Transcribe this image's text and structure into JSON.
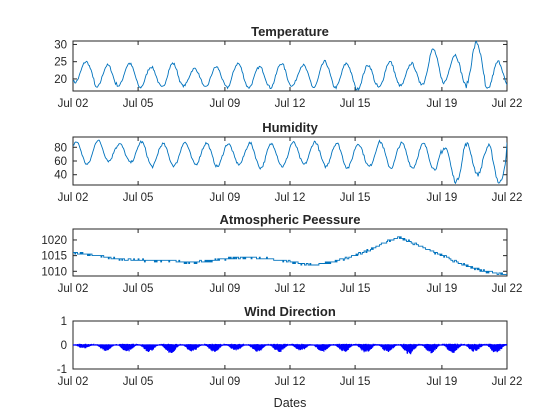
{
  "chart_data": [
    {
      "type": "line",
      "title": "Temperature",
      "xlabel": "",
      "ylabel": "",
      "x_range": [
        "Jul 02",
        "Jul 22"
      ],
      "xticks": [
        "Jul 02",
        "Jul 05",
        "Jul 09",
        "Jul 12",
        "Jul 15",
        "Jul 19",
        "Jul 22"
      ],
      "ylim": [
        16.5,
        31
      ],
      "yticks": [
        20,
        25,
        30
      ],
      "color": "#0072bd",
      "series": [
        {
          "x": [
            "Jul 02",
            "Jul 03",
            "Jul 04",
            "Jul 05",
            "Jul 06",
            "Jul 07",
            "Jul 08",
            "Jul 09",
            "Jul 10",
            "Jul 11",
            "Jul 12",
            "Jul 13",
            "Jul 14",
            "Jul 15",
            "Jul 16",
            "Jul 17",
            "Jul 18",
            "Jul 19",
            "Jul 20",
            "Jul 21",
            "Jul 22"
          ],
          "daily_min": [
            19,
            17.5,
            18,
            17.5,
            17.5,
            18,
            17.5,
            17.5,
            17.5,
            17.5,
            18,
            17.5,
            17.5,
            17,
            17.5,
            18,
            18.5,
            19,
            18,
            17,
            17.5
          ],
          "daily_max": [
            25,
            24,
            24.5,
            23.5,
            24.5,
            23,
            23.5,
            24.5,
            23.5,
            24.5,
            24,
            25,
            24.5,
            24,
            25,
            24.5,
            28.5,
            27,
            30.5,
            25,
            23
          ]
        }
      ]
    },
    {
      "type": "line",
      "title": "Humidity",
      "xlabel": "",
      "ylabel": "",
      "x_range": [
        "Jul 02",
        "Jul 22"
      ],
      "xticks": [
        "Jul 02",
        "Jul 05",
        "Jul 09",
        "Jul 12",
        "Jul 15",
        "Jul 19",
        "Jul 22"
      ],
      "ylim": [
        25,
        95
      ],
      "yticks": [
        40,
        60,
        80
      ],
      "color": "#0072bd",
      "series": [
        {
          "x": [
            "Jul 02",
            "Jul 03",
            "Jul 04",
            "Jul 05",
            "Jul 06",
            "Jul 07",
            "Jul 08",
            "Jul 09",
            "Jul 10",
            "Jul 11",
            "Jul 12",
            "Jul 13",
            "Jul 14",
            "Jul 15",
            "Jul 16",
            "Jul 17",
            "Jul 18",
            "Jul 19",
            "Jul 20",
            "Jul 21",
            "Jul 22"
          ],
          "daily_min": [
            55,
            60,
            58,
            52,
            53,
            55,
            52,
            55,
            50,
            52,
            55,
            52,
            50,
            52,
            50,
            50,
            48,
            30,
            40,
            28,
            50
          ],
          "daily_max": [
            88,
            90,
            85,
            88,
            85,
            87,
            86,
            85,
            86,
            85,
            87,
            88,
            86,
            85,
            88,
            86,
            85,
            80,
            85,
            82,
            95
          ]
        }
      ]
    },
    {
      "type": "line",
      "title": "Atmospheric Peessure",
      "xlabel": "",
      "ylabel": "",
      "x_range": [
        "Jul 02",
        "Jul 22"
      ],
      "xticks": [
        "Jul 02",
        "Jul 05",
        "Jul 09",
        "Jul 12",
        "Jul 15",
        "Jul 19",
        "Jul 22"
      ],
      "ylim": [
        1008.5,
        1023.5
      ],
      "yticks": [
        1010,
        1015,
        1020
      ],
      "color": "#0072bd",
      "series": [
        {
          "x": [
            "Jul 02",
            "Jul 03",
            "Jul 04",
            "Jul 05",
            "Jul 06",
            "Jul 07",
            "Jul 08",
            "Jul 09",
            "Jul 10",
            "Jul 11",
            "Jul 12",
            "Jul 13",
            "Jul 14",
            "Jul 15",
            "Jul 16",
            "Jul 17",
            "Jul 18",
            "Jul 19",
            "Jul 20",
            "Jul 21",
            "Jul 22"
          ],
          "values": [
            1016,
            1015,
            1014,
            1013.5,
            1013.5,
            1013,
            1013,
            1014,
            1014.5,
            1014,
            1013,
            1012,
            1013,
            1015,
            1018,
            1021,
            1018,
            1015,
            1012,
            1010,
            1009
          ]
        }
      ]
    },
    {
      "type": "area",
      "title": "Wind Direction",
      "xlabel": "Dates",
      "ylabel": "",
      "x_range": [
        "Jul 02",
        "Jul 22"
      ],
      "xticks": [
        "Jul 02",
        "Jul 05",
        "Jul 09",
        "Jul 12",
        "Jul 15",
        "Jul 19",
        "Jul 22"
      ],
      "ylim": [
        -1,
        1
      ],
      "yticks": [
        -1,
        0,
        1
      ],
      "color": "#0000ff",
      "series": [
        {
          "x": [
            "Jul 02",
            "Jul 03",
            "Jul 04",
            "Jul 05",
            "Jul 06",
            "Jul 07",
            "Jul 08",
            "Jul 09",
            "Jul 10",
            "Jul 11",
            "Jul 12",
            "Jul 13",
            "Jul 14",
            "Jul 15",
            "Jul 16",
            "Jul 17",
            "Jul 18",
            "Jul 19",
            "Jul 20",
            "Jul 21",
            "Jul 22"
          ],
          "daily_min": [
            -0.15,
            -0.25,
            -0.3,
            -0.3,
            -0.35,
            -0.3,
            -0.3,
            -0.25,
            -0.3,
            -0.3,
            -0.25,
            -0.3,
            -0.3,
            -0.35,
            -0.3,
            -0.4,
            -0.35,
            -0.35,
            -0.3,
            -0.35,
            -0.2
          ],
          "daily_max": [
            0.05,
            0.03,
            0.05,
            0.03,
            0.05,
            0.04,
            0.05,
            0.05,
            0.04,
            0.05,
            0.05,
            0.04,
            0.05,
            0.05,
            0.04,
            0.05,
            0.05,
            0.06,
            0.05,
            0.05,
            0.1
          ]
        }
      ]
    }
  ]
}
